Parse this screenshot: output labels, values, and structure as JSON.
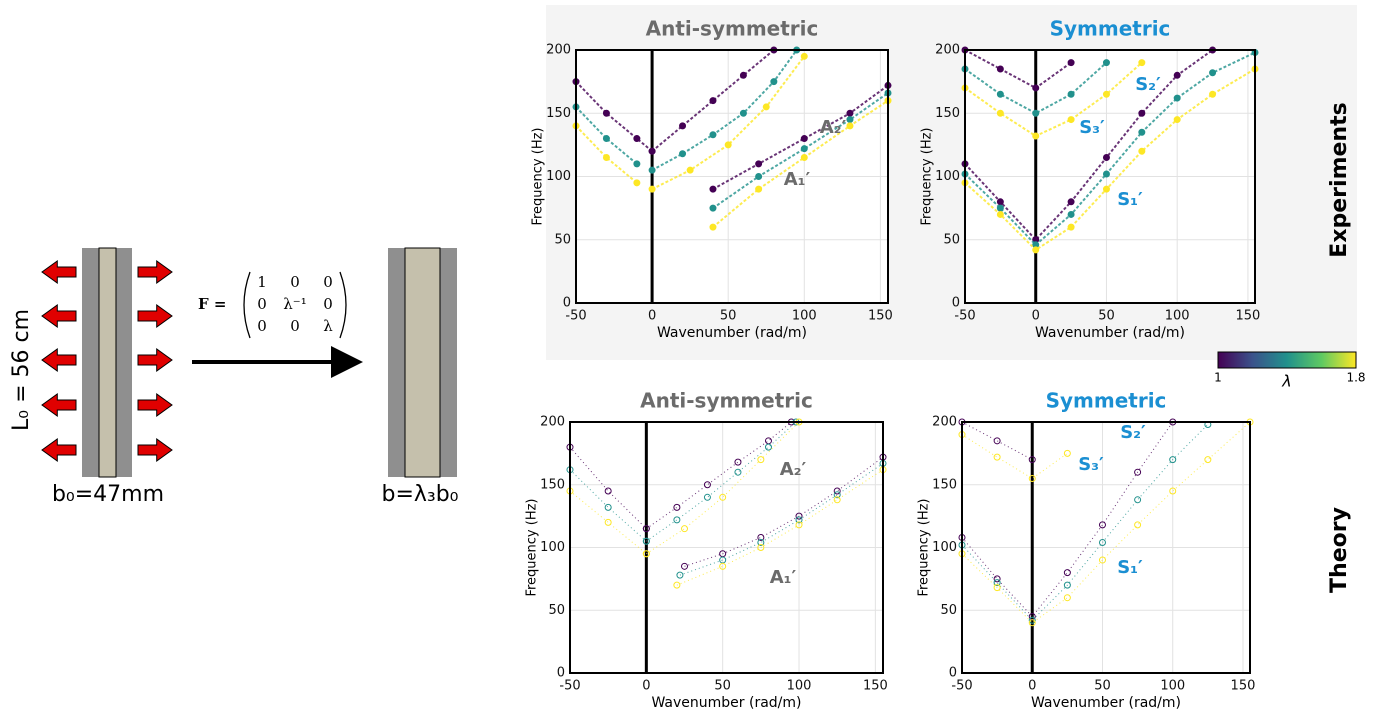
{
  "diagram": {
    "length_label": "L₀ = 56 cm",
    "width_label": "b₀=47mm",
    "stretched_label": "b=λ₃b₀",
    "matrix": {
      "label": "F =",
      "rows": [
        [
          "1",
          "0",
          "0"
        ],
        [
          "0",
          "λ⁻¹",
          "0"
        ],
        [
          "0",
          "0",
          "λ"
        ]
      ]
    }
  },
  "row_labels": [
    "Experiments",
    "Theory"
  ],
  "colorbar": {
    "label": "λ",
    "ticks": [
      1,
      1.8
    ]
  },
  "chart_data": [
    {
      "type": "scatter",
      "title": "Anti-symmetric",
      "title_color": "#6b6b6b",
      "x_label": "Wavenumber (rad/m)",
      "y_label": "Frequency (Hz)",
      "xlim": [
        -50,
        155
      ],
      "ylim": [
        0,
        200
      ],
      "xticks": [
        -50,
        0,
        50,
        100,
        150
      ],
      "yticks": [
        0,
        50,
        100,
        150,
        200
      ],
      "grid": true,
      "marker": "filled",
      "annotations": [
        "A₂′",
        "A₁′"
      ],
      "series": [
        {
          "color": "#440154",
          "x": [
            0,
            20,
            40,
            60,
            80
          ],
          "values": [
            120,
            140,
            160,
            180,
            200
          ]
        },
        {
          "color": "#21918c",
          "x": [
            0,
            20,
            40,
            60,
            80,
            95
          ],
          "values": [
            105,
            118,
            133,
            150,
            175,
            200
          ]
        },
        {
          "color": "#fde725",
          "x": [
            0,
            25,
            50,
            75,
            100
          ],
          "values": [
            90,
            105,
            125,
            155,
            195
          ]
        },
        {
          "color": "#440154",
          "x": [
            40,
            70,
            100,
            130,
            155
          ],
          "values": [
            90,
            110,
            130,
            150,
            172
          ]
        },
        {
          "color": "#21918c",
          "x": [
            40,
            70,
            100,
            130,
            155
          ],
          "values": [
            75,
            100,
            122,
            145,
            166
          ]
        },
        {
          "color": "#fde725",
          "x": [
            40,
            70,
            100,
            130,
            155
          ],
          "values": [
            60,
            90,
            115,
            140,
            160
          ]
        },
        {
          "color": "#440154",
          "x": [
            -50,
            -30,
            -10,
            0
          ],
          "values": [
            175,
            150,
            130,
            120
          ]
        },
        {
          "color": "#21918c",
          "x": [
            -50,
            -30,
            -10
          ],
          "values": [
            155,
            130,
            110
          ]
        },
        {
          "color": "#fde725",
          "x": [
            -50,
            -30,
            -10
          ],
          "values": [
            140,
            115,
            95
          ]
        }
      ]
    },
    {
      "type": "scatter",
      "title": "Symmetric",
      "title_color": "#1b8fd2",
      "x_label": "Wavenumber (rad/m)",
      "y_label": "Frequency (Hz)",
      "xlim": [
        -50,
        155
      ],
      "ylim": [
        0,
        200
      ],
      "xticks": [
        -50,
        0,
        50,
        100,
        150
      ],
      "yticks": [
        0,
        50,
        100,
        150,
        200
      ],
      "grid": true,
      "marker": "filled",
      "annotations": [
        "S₂′",
        "S₃′",
        "S₁′"
      ],
      "series": [
        {
          "color": "#440154",
          "x": [
            -50,
            -25,
            0,
            25,
            50,
            75,
            100,
            125
          ],
          "values": [
            110,
            80,
            50,
            80,
            115,
            150,
            180,
            200
          ]
        },
        {
          "color": "#21918c",
          "x": [
            -50,
            -25,
            0,
            25,
            50,
            75,
            100,
            125,
            155
          ],
          "values": [
            102,
            75,
            46,
            70,
            102,
            135,
            162,
            182,
            198
          ]
        },
        {
          "color": "#fde725",
          "x": [
            -50,
            -25,
            0,
            25,
            50,
            75,
            100,
            125,
            155
          ],
          "values": [
            95,
            70,
            42,
            60,
            90,
            120,
            145,
            165,
            185
          ]
        },
        {
          "color": "#440154",
          "x": [
            -50,
            -25,
            0,
            25
          ],
          "values": [
            200,
            185,
            170,
            190
          ]
        },
        {
          "color": "#21918c",
          "x": [
            -50,
            -25,
            0,
            25,
            50
          ],
          "values": [
            185,
            165,
            150,
            165,
            190
          ]
        },
        {
          "color": "#fde725",
          "x": [
            -50,
            -25,
            0,
            25,
            50,
            75
          ],
          "values": [
            170,
            150,
            132,
            145,
            165,
            190
          ]
        }
      ]
    },
    {
      "type": "scatter",
      "title": "Anti-symmetric",
      "title_color": "#6b6b6b",
      "x_label": "Wavenumber (rad/m)",
      "y_label": "Frequency (Hz)",
      "xlim": [
        -50,
        155
      ],
      "ylim": [
        0,
        200
      ],
      "xticks": [
        -50,
        0,
        50,
        100,
        150
      ],
      "yticks": [
        0,
        50,
        100,
        150,
        200
      ],
      "grid": true,
      "marker": "hollow",
      "annotations": [
        "A₂′",
        "A₁′"
      ],
      "series": [
        {
          "color": "#440154",
          "x": [
            0,
            20,
            40,
            60,
            80,
            95
          ],
          "values": [
            115,
            132,
            150,
            168,
            185,
            200
          ]
        },
        {
          "color": "#21918c",
          "x": [
            0,
            20,
            40,
            60,
            80,
            98
          ],
          "values": [
            105,
            122,
            140,
            160,
            180,
            200
          ]
        },
        {
          "color": "#fde725",
          "x": [
            0,
            25,
            50,
            75,
            100
          ],
          "values": [
            95,
            115,
            140,
            170,
            200
          ]
        },
        {
          "color": "#440154",
          "x": [
            25,
            50,
            75,
            100,
            125,
            155
          ],
          "values": [
            85,
            95,
            108,
            125,
            145,
            172
          ]
        },
        {
          "color": "#21918c",
          "x": [
            22,
            50,
            75,
            100,
            125,
            155
          ],
          "values": [
            78,
            90,
            104,
            122,
            142,
            167
          ]
        },
        {
          "color": "#fde725",
          "x": [
            20,
            50,
            75,
            100,
            125,
            155
          ],
          "values": [
            70,
            85,
            100,
            118,
            138,
            162
          ]
        },
        {
          "color": "#440154",
          "x": [
            -50,
            -25,
            0
          ],
          "values": [
            180,
            145,
            115
          ]
        },
        {
          "color": "#21918c",
          "x": [
            -50,
            -25,
            0
          ],
          "values": [
            162,
            132,
            105
          ]
        },
        {
          "color": "#fde725",
          "x": [
            -50,
            -25,
            0
          ],
          "values": [
            145,
            120,
            95
          ]
        }
      ]
    },
    {
      "type": "scatter",
      "title": "Symmetric",
      "title_color": "#1b8fd2",
      "x_label": "Wavenumber (rad/m)",
      "y_label": "Frequency (Hz)",
      "xlim": [
        -50,
        155
      ],
      "ylim": [
        0,
        200
      ],
      "xticks": [
        -50,
        0,
        50,
        100,
        150
      ],
      "yticks": [
        0,
        50,
        100,
        150,
        200
      ],
      "grid": true,
      "marker": "hollow",
      "annotations": [
        "S₂′",
        "S₃′",
        "S₁′"
      ],
      "series": [
        {
          "color": "#440154",
          "x": [
            -50,
            -25,
            0,
            25,
            50,
            75,
            100
          ],
          "values": [
            108,
            75,
            45,
            80,
            118,
            160,
            200
          ]
        },
        {
          "color": "#21918c",
          "x": [
            -50,
            -25,
            0,
            25,
            50,
            75,
            100,
            125
          ],
          "values": [
            102,
            72,
            42,
            70,
            104,
            138,
            170,
            198
          ]
        },
        {
          "color": "#fde725",
          "x": [
            -50,
            -25,
            0,
            25,
            50,
            75,
            100,
            125,
            155
          ],
          "values": [
            95,
            68,
            40,
            60,
            90,
            118,
            145,
            170,
            200
          ]
        },
        {
          "color": "#440154",
          "x": [
            -50,
            -25,
            0
          ],
          "values": [
            200,
            185,
            170
          ]
        },
        {
          "color": "#fde725",
          "x": [
            -50,
            -25,
            0,
            25
          ],
          "values": [
            190,
            172,
            155,
            175
          ]
        }
      ]
    }
  ]
}
